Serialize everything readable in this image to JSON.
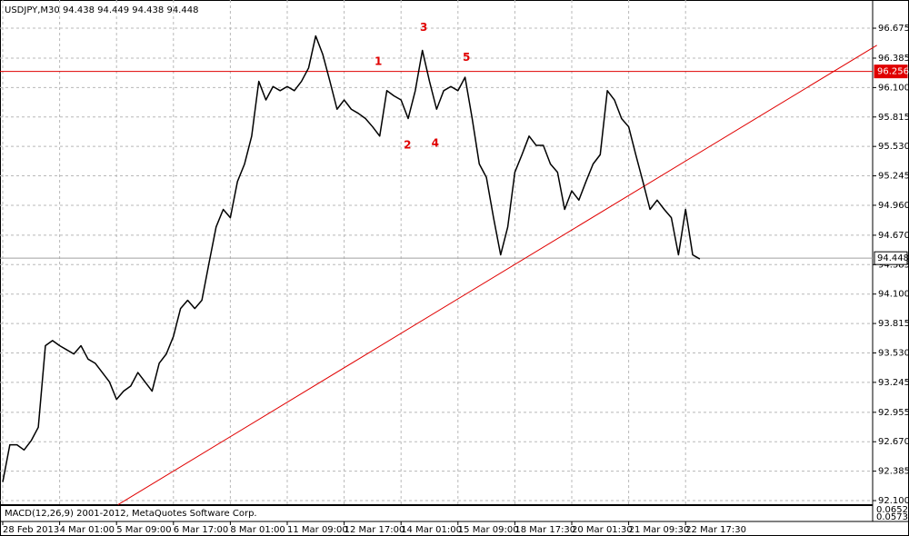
{
  "chart_data": {
    "type": "line",
    "title": "USDJPY,M30  94.438 94.449 94.438 94.448",
    "categories": [
      "28 Feb 2013",
      null,
      null,
      null,
      null,
      null,
      null,
      null,
      "4 Mar 01:00",
      null,
      null,
      null,
      null,
      null,
      null,
      null,
      "5 Mar 09:00",
      null,
      null,
      null,
      null,
      null,
      null,
      null,
      "6 Mar 17:00",
      null,
      null,
      null,
      null,
      null,
      null,
      null,
      "8 Mar 01:00",
      null,
      null,
      null,
      null,
      null,
      null,
      null,
      "11 Mar 09:00",
      null,
      null,
      null,
      null,
      null,
      null,
      null,
      "12 Mar 17:00",
      null,
      null,
      null,
      null,
      null,
      null,
      null,
      "14 Mar 01:00",
      null,
      null,
      null,
      null,
      null,
      null,
      null,
      "15 Mar 09:00",
      null,
      null,
      null,
      null,
      null,
      null,
      null,
      "18 Mar 17:30",
      null,
      null,
      null,
      null,
      null,
      null,
      null,
      "20 Mar 01:30",
      null,
      null,
      null,
      null,
      null,
      null,
      null,
      "21 Mar 09:30",
      null,
      null,
      null,
      null,
      null,
      null,
      null,
      "22 Mar 17:30",
      null,
      null
    ],
    "series": [
      {
        "name": "USDJPY",
        "color": "#000000",
        "values": [
          92.28,
          92.64,
          92.64,
          92.59,
          92.68,
          92.81,
          93.6,
          93.65,
          93.6,
          93.56,
          93.52,
          93.6,
          93.47,
          93.43,
          93.34,
          93.25,
          93.08,
          93.16,
          93.21,
          93.34,
          93.25,
          93.16,
          93.43,
          93.52,
          93.69,
          93.96,
          94.04,
          93.96,
          94.04,
          94.4,
          94.75,
          94.92,
          94.84,
          95.19,
          95.36,
          95.63,
          96.16,
          95.98,
          96.11,
          96.07,
          96.11,
          96.07,
          96.16,
          96.29,
          96.6,
          96.42,
          96.16,
          95.89,
          95.98,
          95.89,
          95.85,
          95.8,
          95.72,
          95.63,
          96.07,
          96.02,
          95.98,
          95.8,
          96.07,
          96.46,
          96.16,
          95.89,
          96.07,
          96.11,
          96.07,
          96.2,
          95.8,
          95.36,
          95.23,
          94.84,
          94.48,
          94.75,
          95.28,
          95.45,
          95.63,
          95.54,
          95.54,
          95.36,
          95.28,
          94.92,
          95.1,
          95.01,
          95.19,
          95.36,
          95.45,
          96.07,
          95.98,
          95.8,
          95.72,
          95.45,
          95.19,
          94.92,
          95.01,
          94.92,
          94.84,
          94.48,
          94.92,
          94.48,
          94.44
        ]
      }
    ],
    "ylim": [
      92.065,
      96.904
    ],
    "yticks": [
      96.675,
      96.385,
      {
        "value": 96.1,
        "label": "96.100"
      },
      95.815,
      {
        "value": 95.53,
        "label": "95.530"
      },
      95.245,
      {
        "value": 94.96,
        "label": "94.960"
      },
      {
        "value": 94.67,
        "label": "94.670"
      },
      94.385,
      {
        "value": 94.1,
        "label": "94.100"
      },
      93.815,
      {
        "value": 93.53,
        "label": "93.530"
      },
      93.245,
      92.955,
      {
        "value": 92.67,
        "label": "92.670"
      },
      92.385,
      {
        "value": 92.1,
        "label": "92.100"
      }
    ],
    "grid": true,
    "hlines": [
      {
        "value": 96.256,
        "label": "96.256",
        "color": "#e00000"
      },
      {
        "value": 94.448,
        "label": "94.448",
        "color": "#a0a0a0"
      }
    ],
    "trendline": {
      "color": "#e00000",
      "points": [
        {
          "x": 16.2,
          "y": 92.06
        },
        {
          "x": 122.9,
          "y": 96.51
        }
      ]
    },
    "annotations": [
      {
        "text": "1",
        "x": 52.8,
        "y": 96.35
      },
      {
        "text": "2",
        "x": 56.9,
        "y": 95.54
      },
      {
        "text": "3",
        "x": 59.2,
        "y": 96.68
      },
      {
        "text": "4",
        "x": 60.8,
        "y": 95.56
      },
      {
        "text": "5",
        "x": 65.2,
        "y": 96.39
      }
    ],
    "indicator_label": "MACD(12,26,9) 2001-2012, MetaQuotes Software Corp.",
    "indicator_ticks": [
      "0.0652",
      "0.0573"
    ]
  }
}
